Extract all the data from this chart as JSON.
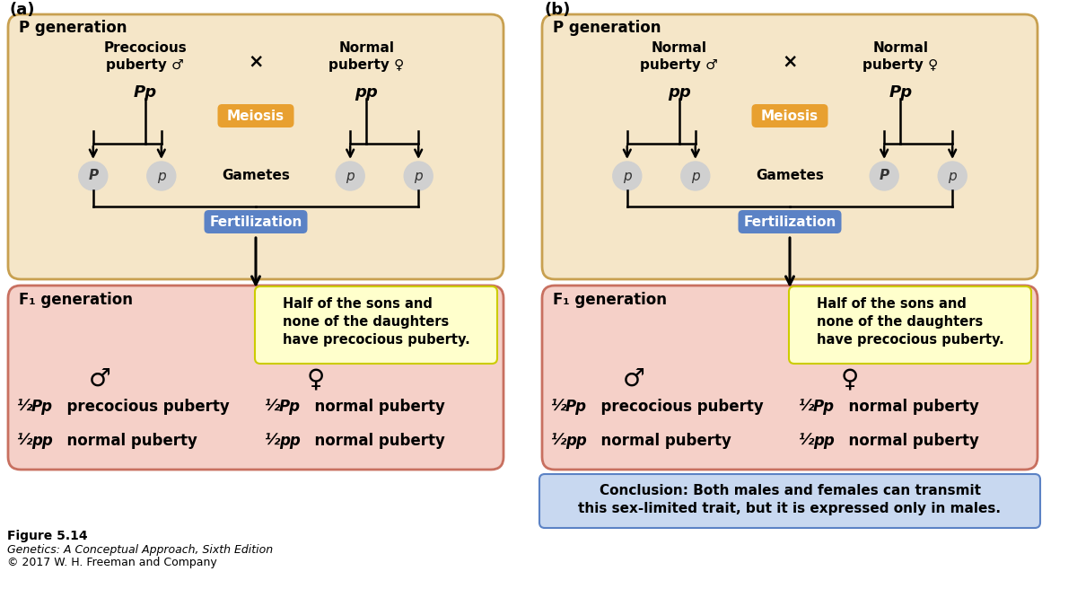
{
  "fig_width": 12.0,
  "fig_height": 6.56,
  "bg_color": "#ffffff",
  "panel_a": {
    "label": "(a)",
    "p_gen_bg": "#f5e6c8",
    "p_gen_border": "#c8a050",
    "f1_gen_bg": "#f5d0c8",
    "f1_gen_border": "#c87060",
    "p_gen_title": "P generation",
    "male_label": "Precocious\npuberty ♂",
    "male_genotype": "Pp",
    "female_label": "Normal\npuberty ♀",
    "female_genotype": "pp",
    "male_geno_italic": [
      true,
      false
    ],
    "female_geno_italic": [
      false,
      false
    ],
    "meiosis_color": "#e8a030",
    "gametes": [
      "P",
      "p",
      "p",
      "p"
    ],
    "gametes_capital": [
      true,
      false,
      false,
      false
    ],
    "fertilization_color": "#5b82c5",
    "f1_title": "F₁ generation",
    "half_sons_text": "Half of the sons and\nnone of the daughters\nhave precocious puberty.",
    "half_sons_bg": "#ffffcc",
    "half_sons_border": "#cccc00",
    "offspring_lines": [
      {
        "frac_male": "½",
        "geno_male": "Pp",
        "desc_male": "precocious puberty",
        "frac_female": "½",
        "geno_female": "Pp",
        "desc_female": "normal puberty"
      },
      {
        "frac_male": "½",
        "geno_male": "pp",
        "desc_male": "normal puberty",
        "frac_female": "½",
        "geno_female": "pp",
        "desc_female": "normal puberty"
      }
    ]
  },
  "panel_b": {
    "label": "(b)",
    "p_gen_bg": "#f5e6c8",
    "p_gen_border": "#c8a050",
    "f1_gen_bg": "#f5d0c8",
    "f1_gen_border": "#c87060",
    "p_gen_title": "P generation",
    "male_label": "Normal\npuberty ♂",
    "male_genotype": "pp",
    "female_label": "Normal\npuberty ♀",
    "female_genotype": "Pp",
    "male_geno_italic": [
      false,
      false
    ],
    "female_geno_italic": [
      true,
      false
    ],
    "meiosis_color": "#e8a030",
    "gametes": [
      "p",
      "p",
      "P",
      "p"
    ],
    "gametes_capital": [
      false,
      false,
      true,
      false
    ],
    "fertilization_color": "#5b82c5",
    "f1_title": "F₁ generation",
    "half_sons_text": "Half of the sons and\nnone of the daughters\nhave precocious puberty.",
    "half_sons_bg": "#ffffcc",
    "half_sons_border": "#cccc00",
    "offspring_lines": [
      {
        "frac_male": "½",
        "geno_male": "Pp",
        "desc_male": "precocious puberty",
        "frac_female": "½",
        "geno_female": "Pp",
        "desc_female": "normal puberty"
      },
      {
        "frac_male": "½",
        "geno_male": "pp",
        "desc_male": "normal puberty",
        "frac_female": "½",
        "geno_female": "pp",
        "desc_female": "normal puberty"
      }
    ],
    "conclusion_text": "Conclusion: Both males and females can transmit\nthis sex-limited trait, but it is expressed only in males.",
    "conclusion_bg": "#c8d8f0",
    "conclusion_border": "#5b82c5"
  },
  "figure_caption": "Figure 5.14",
  "figure_subtitle": "Genetics: A Conceptual Approach, Sixth Edition",
  "figure_copyright": "© 2017 W. H. Freeman and Company"
}
